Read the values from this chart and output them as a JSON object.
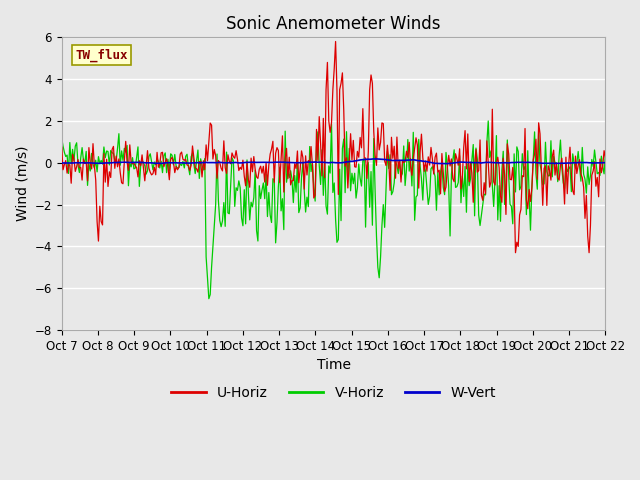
{
  "title": "Sonic Anemometer Winds",
  "xlabel": "Time",
  "ylabel": "Wind (m/s)",
  "ylim": [
    -8,
    6
  ],
  "yticks": [
    -8,
    -6,
    -4,
    -2,
    0,
    2,
    4,
    6
  ],
  "colors": {
    "U": "#dd0000",
    "V": "#00cc00",
    "W": "#0000cc"
  },
  "legend_labels": [
    "U-Horiz",
    "V-Horiz",
    "W-Vert"
  ],
  "box_label": "TW_flux",
  "box_facecolor": "#ffffcc",
  "box_edgecolor": "#999900",
  "plot_bg_color": "#e8e8e8",
  "grid_color": "#ffffff",
  "title_fontsize": 12,
  "axis_label_fontsize": 10,
  "tick_label_fontsize": 8.5,
  "n_points": 400,
  "seed": 7
}
